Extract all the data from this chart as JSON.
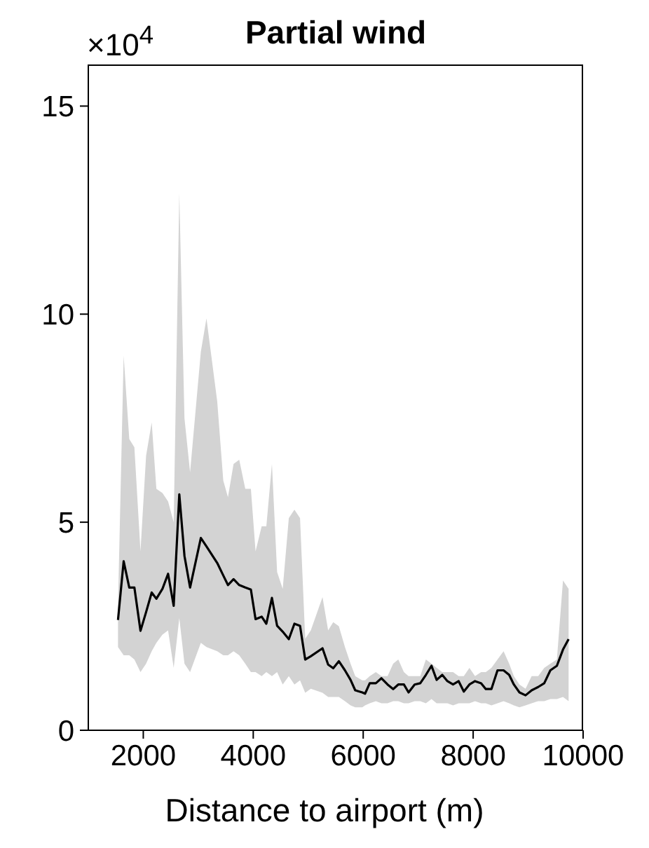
{
  "chart_data": {
    "type": "line",
    "title": "Partial wind",
    "xlabel": "Distance to airport (m)",
    "annotations": [
      "×10$^{4}$"
    ],
    "x": [
      1540,
      1643,
      1745,
      1838,
      1949,
      2051,
      2153,
      2238,
      2349,
      2451,
      2553,
      2655,
      2749,
      2851,
      3047,
      3149,
      3345,
      3455,
      3540,
      3642,
      3745,
      3855,
      3957,
      4042,
      4153,
      4238,
      4340,
      4434,
      4536,
      4647,
      4749,
      4851,
      4945,
      5047,
      5260,
      5362,
      5455,
      5557,
      5668,
      5770,
      5855,
      5983,
      6034,
      6119,
      6230,
      6332,
      6443,
      6545,
      6638,
      6740,
      6825,
      6936,
      7038,
      7140,
      7242,
      7336,
      7438,
      7532,
      7634,
      7736,
      7830,
      7932,
      8034,
      8145,
      8230,
      8332,
      8443,
      8553,
      8655,
      8740,
      8842,
      8953,
      9064,
      9183,
      9293,
      9404,
      9523,
      9634,
      9736
    ],
    "series": [
      {
        "color": "#000000",
        "values": [
          2.65,
          4.06,
          3.43,
          3.43,
          2.39,
          2.84,
          3.31,
          3.16,
          3.4,
          3.76,
          2.99,
          5.67,
          4.19,
          3.43,
          4.62,
          4.42,
          4.02,
          3.72,
          3.49,
          3.63,
          3.49,
          3.43,
          3.38,
          2.67,
          2.73,
          2.56,
          3.18,
          2.51,
          2.37,
          2.19,
          2.56,
          2.51,
          1.7,
          1.78,
          1.97,
          1.58,
          1.49,
          1.66,
          1.44,
          1.21,
          0.96,
          0.91,
          0.88,
          1.13,
          1.13,
          1.25,
          1.1,
          0.99,
          1.1,
          1.1,
          0.91,
          1.1,
          1.13,
          1.33,
          1.55,
          1.21,
          1.33,
          1.18,
          1.1,
          1.18,
          0.93,
          1.1,
          1.18,
          1.13,
          0.99,
          0.99,
          1.44,
          1.44,
          1.33,
          1.1,
          0.91,
          0.84,
          0.96,
          1.04,
          1.13,
          1.44,
          1.55,
          1.94,
          2.19
        ],
        "upper": [
          3.0,
          9.0,
          7.0,
          6.8,
          4.3,
          6.6,
          7.4,
          5.8,
          5.7,
          5.5,
          5.0,
          12.9,
          7.5,
          6.2,
          9.1,
          9.9,
          7.9,
          6.0,
          5.6,
          6.4,
          6.5,
          5.8,
          5.8,
          4.3,
          4.9,
          4.9,
          6.4,
          3.8,
          3.4,
          5.1,
          5.3,
          5.1,
          2.2,
          2.4,
          3.2,
          2.4,
          2.6,
          2.5,
          2.0,
          1.6,
          1.3,
          1.2,
          1.2,
          1.3,
          1.4,
          1.3,
          1.3,
          1.6,
          1.7,
          1.4,
          1.3,
          1.3,
          1.3,
          1.7,
          1.6,
          1.5,
          1.4,
          1.4,
          1.4,
          1.3,
          1.3,
          1.5,
          1.3,
          1.4,
          1.4,
          1.5,
          1.7,
          1.9,
          1.6,
          1.3,
          1.1,
          1.0,
          1.3,
          1.3,
          1.5,
          1.6,
          1.7,
          3.6,
          3.4
        ],
        "lower": [
          2.0,
          1.8,
          1.8,
          1.7,
          1.4,
          1.6,
          1.9,
          2.1,
          2.3,
          2.4,
          1.5,
          2.7,
          1.6,
          1.4,
          2.1,
          2.0,
          1.9,
          1.8,
          1.8,
          1.9,
          1.8,
          1.6,
          1.4,
          1.4,
          1.3,
          1.4,
          1.3,
          1.4,
          1.1,
          1.3,
          1.1,
          1.2,
          0.9,
          1.0,
          0.9,
          0.8,
          0.8,
          0.8,
          0.7,
          0.6,
          0.55,
          0.55,
          0.6,
          0.65,
          0.7,
          0.65,
          0.65,
          0.7,
          0.7,
          0.65,
          0.65,
          0.7,
          0.7,
          0.65,
          0.75,
          0.65,
          0.65,
          0.65,
          0.6,
          0.65,
          0.65,
          0.65,
          0.7,
          0.65,
          0.65,
          0.6,
          0.65,
          0.7,
          0.65,
          0.6,
          0.55,
          0.6,
          0.65,
          0.7,
          0.7,
          0.75,
          0.75,
          0.8,
          0.7
        ]
      }
    ],
    "xlim": [
      1000,
      10000
    ],
    "xticks": [
      2000,
      4000,
      6000,
      8000,
      10000
    ],
    "ylim": [
      0,
      16
    ],
    "yticks": [
      0,
      5,
      10,
      15
    ],
    "grid": false,
    "marker": "none",
    "line_style": "solid"
  }
}
